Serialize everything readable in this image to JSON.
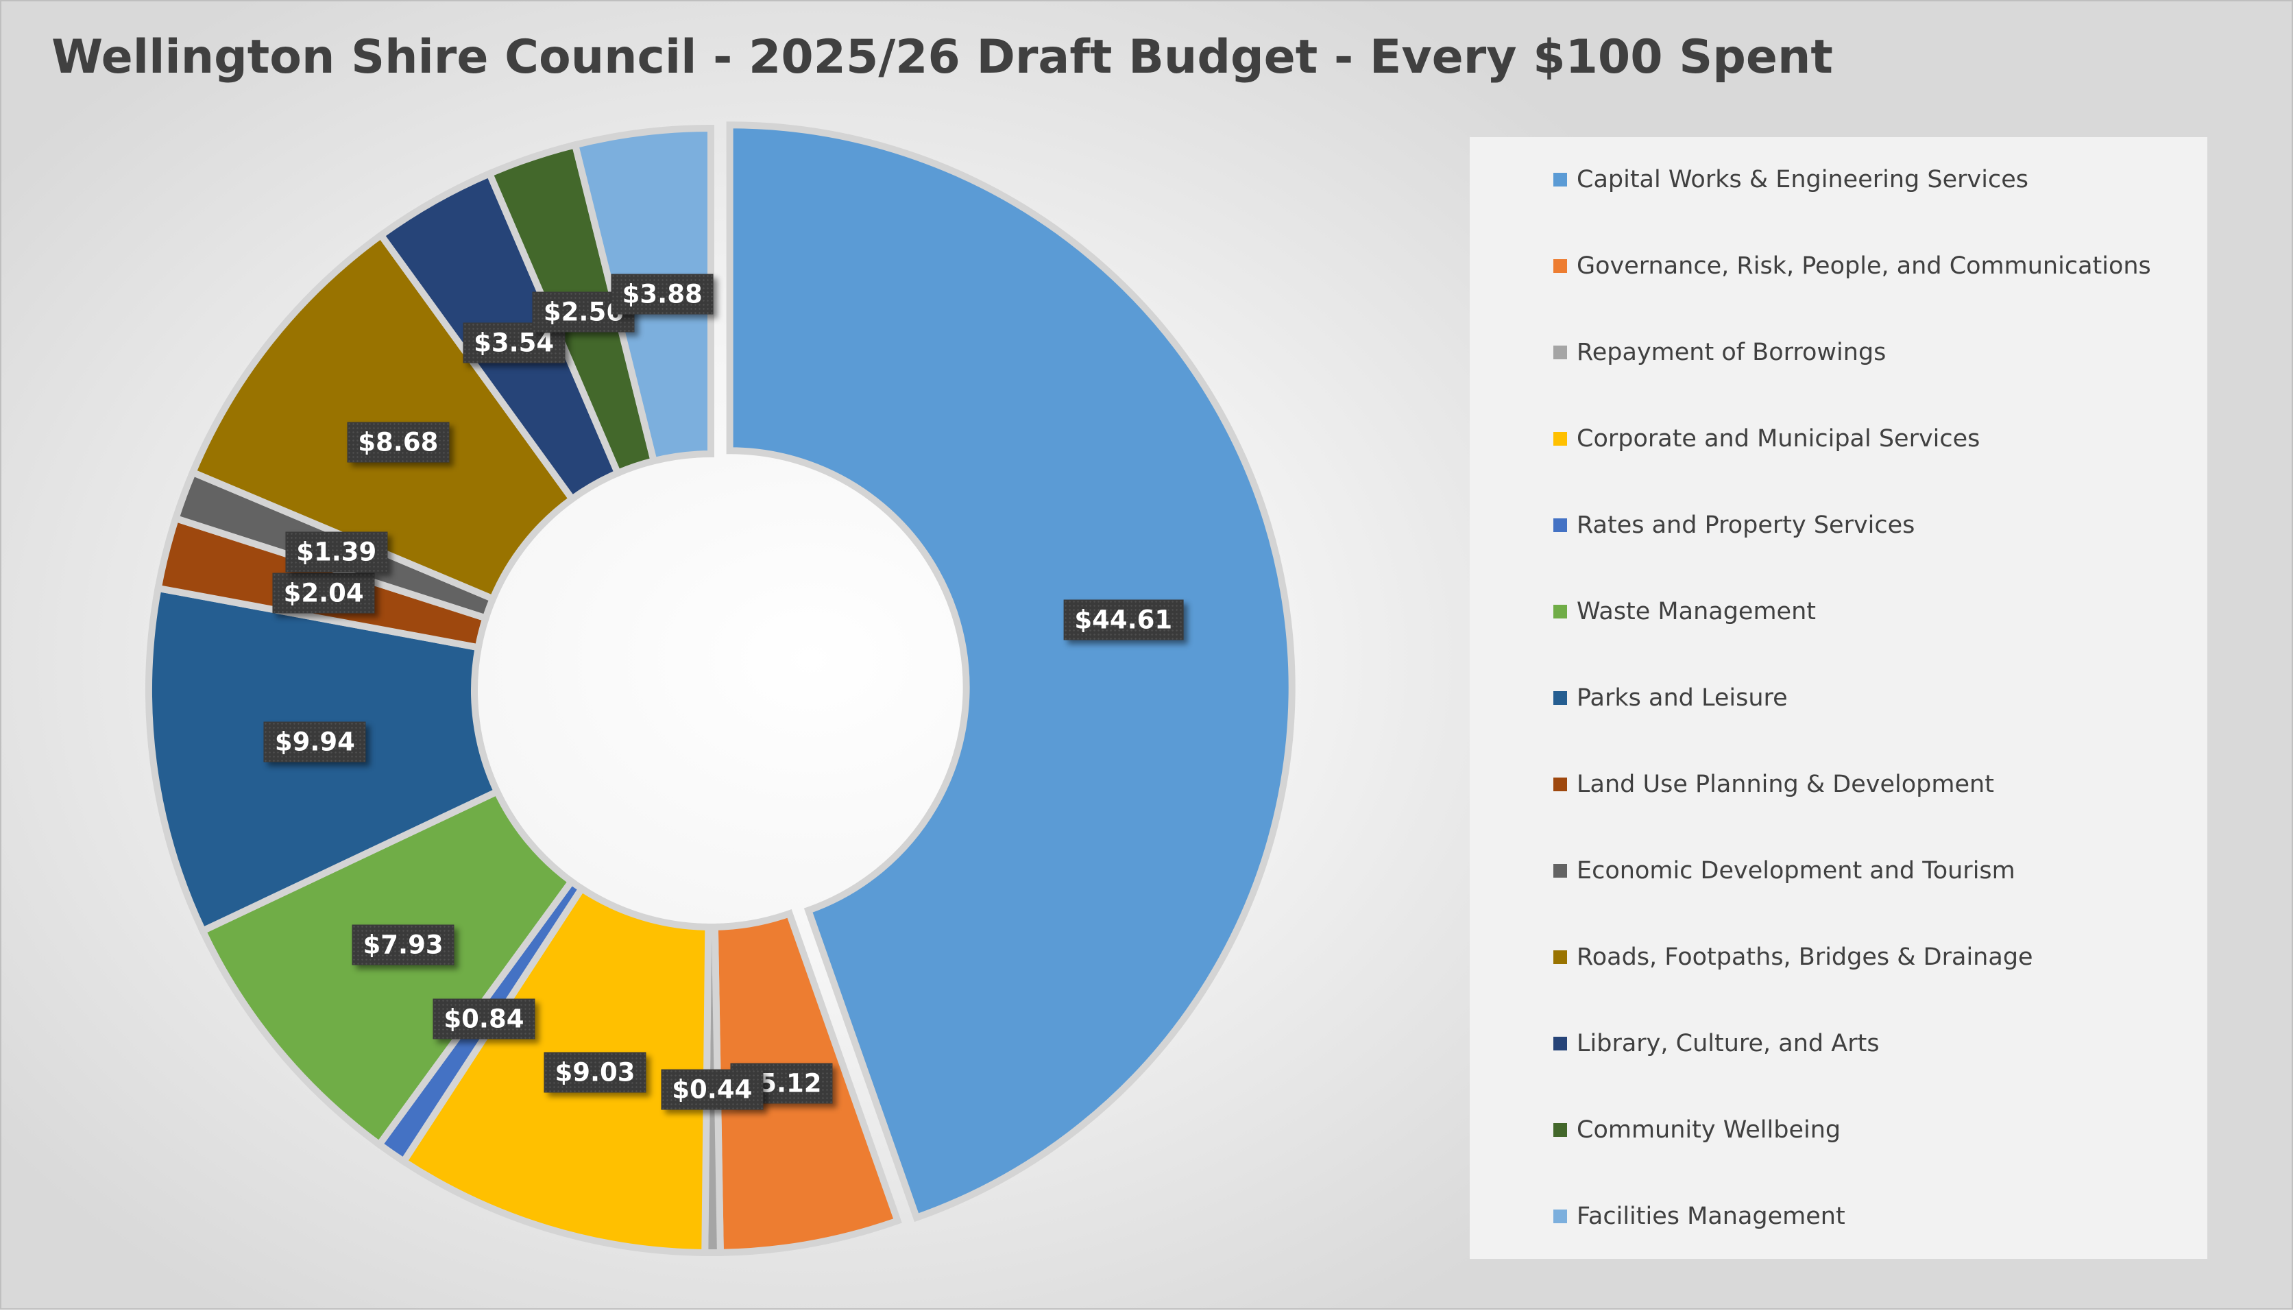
{
  "chart_data": {
    "type": "donut",
    "title": "Wellington Shire Council - 2025/26 Draft Budget - Every $100 Spent",
    "legend_position": "right",
    "slices": [
      {
        "name": "Capital Works & Engineering Services",
        "value": 44.61,
        "label": "$44.61",
        "color": "#5b9bd5"
      },
      {
        "name": "Governance, Risk, People, and Communications",
        "value": 5.12,
        "label": "$5.12",
        "color": "#ed7d31"
      },
      {
        "name": "Repayment of Borrowings",
        "value": 0.44,
        "label": "$0.44",
        "color": "#a5a5a5"
      },
      {
        "name": "Corporate and Municipal Services",
        "value": 9.03,
        "label": "$9.03",
        "color": "#ffc000"
      },
      {
        "name": "Rates and Property Services",
        "value": 0.84,
        "label": "$0.84",
        "color": "#4472c4"
      },
      {
        "name": "Waste Management",
        "value": 7.93,
        "label": "$7.93",
        "color": "#70ad47"
      },
      {
        "name": "Parks and Leisure",
        "value": 9.94,
        "label": "$9.94",
        "color": "#255e91"
      },
      {
        "name": "Land Use Planning & Development",
        "value": 2.04,
        "label": "$2.04",
        "color": "#9e480e"
      },
      {
        "name": "Economic Development and Tourism",
        "value": 1.39,
        "label": "$1.39",
        "color": "#636363"
      },
      {
        "name": "Roads, Footpaths, Bridges & Drainage",
        "value": 8.68,
        "label": "$8.68",
        "color": "#997300"
      },
      {
        "name": "Library, Culture, and Arts",
        "value": 3.54,
        "label": "$3.54",
        "color": "#264478"
      },
      {
        "name": "Community Wellbeing",
        "value": 2.56,
        "label": "$2.56",
        "color": "#43682b"
      },
      {
        "name": "Facilities Management",
        "value": 3.88,
        "label": "$3.88",
        "color": "#7cafdd"
      }
    ]
  }
}
